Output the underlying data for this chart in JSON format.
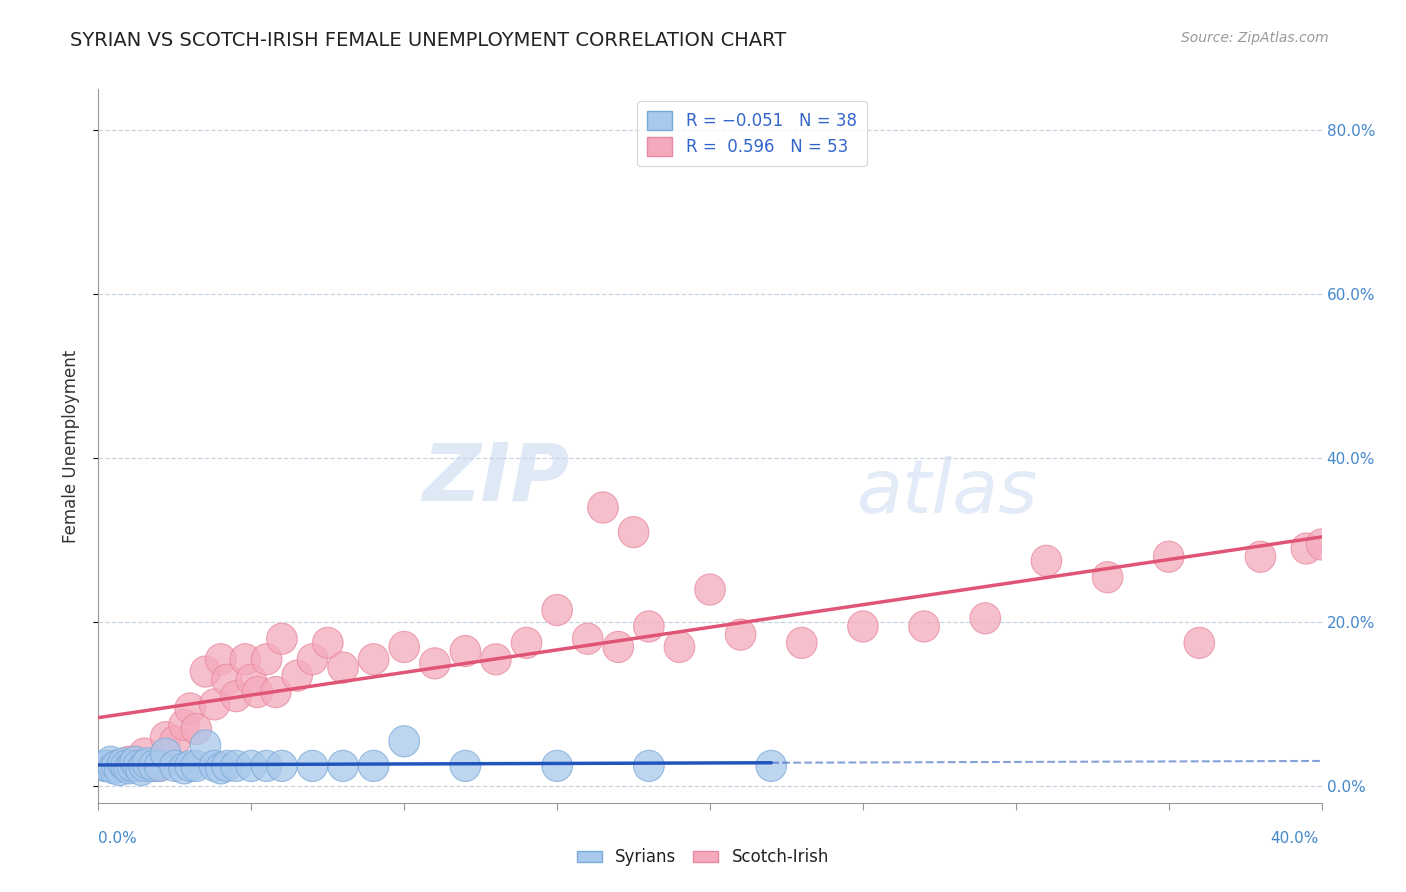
{
  "title": "SYRIAN VS SCOTCH-IRISH FEMALE UNEMPLOYMENT CORRELATION CHART",
  "source": "Source: ZipAtlas.com",
  "ylabel": "Female Unemployment",
  "right_ytick_vals": [
    0.8,
    0.6,
    0.4,
    0.2,
    0.0
  ],
  "syrian_color": "#A8C8EC",
  "scotch_color": "#F4AABC",
  "syrian_edge_color": "#7AAAD8",
  "scotch_edge_color": "#E888A0",
  "syrian_line_color": "#2255BB",
  "scotch_line_color": "#E05575",
  "xlim": [
    0.0,
    0.4
  ],
  "ylim": [
    -0.02,
    0.85
  ],
  "syrian_trend": [
    -0.008,
    0.028
  ],
  "scotch_trend": [
    0.88,
    0.005
  ],
  "syrian_points": [
    [
      0.002,
      0.025
    ],
    [
      0.003,
      0.025
    ],
    [
      0.004,
      0.03
    ],
    [
      0.005,
      0.022
    ],
    [
      0.006,
      0.025
    ],
    [
      0.007,
      0.02
    ],
    [
      0.008,
      0.028
    ],
    [
      0.009,
      0.025
    ],
    [
      0.01,
      0.022
    ],
    [
      0.011,
      0.025
    ],
    [
      0.012,
      0.03
    ],
    [
      0.013,
      0.025
    ],
    [
      0.014,
      0.02
    ],
    [
      0.015,
      0.025
    ],
    [
      0.016,
      0.028
    ],
    [
      0.018,
      0.025
    ],
    [
      0.02,
      0.025
    ],
    [
      0.022,
      0.04
    ],
    [
      0.025,
      0.025
    ],
    [
      0.028,
      0.022
    ],
    [
      0.03,
      0.025
    ],
    [
      0.032,
      0.025
    ],
    [
      0.035,
      0.05
    ],
    [
      0.038,
      0.025
    ],
    [
      0.04,
      0.022
    ],
    [
      0.042,
      0.025
    ],
    [
      0.045,
      0.025
    ],
    [
      0.05,
      0.025
    ],
    [
      0.055,
      0.025
    ],
    [
      0.06,
      0.025
    ],
    [
      0.07,
      0.025
    ],
    [
      0.08,
      0.025
    ],
    [
      0.09,
      0.025
    ],
    [
      0.1,
      0.055
    ],
    [
      0.12,
      0.025
    ],
    [
      0.15,
      0.025
    ],
    [
      0.18,
      0.025
    ],
    [
      0.22,
      0.025
    ]
  ],
  "scotch_points": [
    [
      0.005,
      0.025
    ],
    [
      0.008,
      0.025
    ],
    [
      0.01,
      0.03
    ],
    [
      0.012,
      0.025
    ],
    [
      0.015,
      0.04
    ],
    [
      0.018,
      0.025
    ],
    [
      0.02,
      0.025
    ],
    [
      0.022,
      0.06
    ],
    [
      0.025,
      0.055
    ],
    [
      0.028,
      0.075
    ],
    [
      0.03,
      0.095
    ],
    [
      0.032,
      0.07
    ],
    [
      0.035,
      0.14
    ],
    [
      0.038,
      0.1
    ],
    [
      0.04,
      0.155
    ],
    [
      0.042,
      0.13
    ],
    [
      0.045,
      0.11
    ],
    [
      0.048,
      0.155
    ],
    [
      0.05,
      0.13
    ],
    [
      0.052,
      0.115
    ],
    [
      0.055,
      0.155
    ],
    [
      0.058,
      0.115
    ],
    [
      0.06,
      0.18
    ],
    [
      0.065,
      0.135
    ],
    [
      0.07,
      0.155
    ],
    [
      0.075,
      0.175
    ],
    [
      0.08,
      0.145
    ],
    [
      0.09,
      0.155
    ],
    [
      0.1,
      0.17
    ],
    [
      0.11,
      0.15
    ],
    [
      0.12,
      0.165
    ],
    [
      0.13,
      0.155
    ],
    [
      0.14,
      0.175
    ],
    [
      0.15,
      0.215
    ],
    [
      0.16,
      0.18
    ],
    [
      0.165,
      0.34
    ],
    [
      0.17,
      0.17
    ],
    [
      0.175,
      0.31
    ],
    [
      0.18,
      0.195
    ],
    [
      0.19,
      0.17
    ],
    [
      0.2,
      0.24
    ],
    [
      0.21,
      0.185
    ],
    [
      0.23,
      0.175
    ],
    [
      0.25,
      0.195
    ],
    [
      0.27,
      0.195
    ],
    [
      0.29,
      0.205
    ],
    [
      0.31,
      0.275
    ],
    [
      0.33,
      0.255
    ],
    [
      0.35,
      0.28
    ],
    [
      0.36,
      0.175
    ],
    [
      0.38,
      0.28
    ],
    [
      0.395,
      0.29
    ],
    [
      0.4,
      0.295
    ]
  ]
}
